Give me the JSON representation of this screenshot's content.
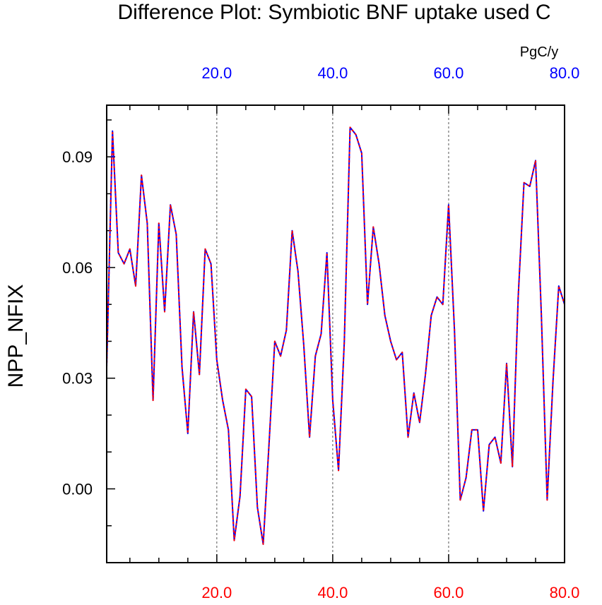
{
  "chart_data": {
    "type": "line",
    "title": "Difference Plot: Symbiotic BNF uptake used C",
    "units": "PgC/y",
    "ylabel": "NPP_NFIX",
    "xlabel": "",
    "xlim": [
      1,
      80
    ],
    "ylim": [
      -0.02,
      0.104
    ],
    "yticks": [
      0.0,
      0.03,
      0.06,
      0.09
    ],
    "ytick_labels": [
      "0.00",
      "0.03",
      "0.06",
      "0.09"
    ],
    "xticks": [
      20,
      40,
      60,
      80
    ],
    "xtick_labels_top": [
      "20.0",
      "40.0",
      "60.0",
      "80.0"
    ],
    "xtick_labels_bottom": [
      "20.0",
      "40.0",
      "60.0",
      "80.0"
    ],
    "top_axis_color": "#0000ff",
    "bottom_axis_color": "#ff0000",
    "vertical_gridlines": [
      20,
      40,
      60
    ],
    "series": [
      {
        "line_color": "#0000ff",
        "overlay_color": "#ff0000",
        "x": [
          1,
          2,
          3,
          4,
          5,
          6,
          7,
          8,
          9,
          10,
          11,
          12,
          13,
          14,
          15,
          16,
          17,
          18,
          19,
          20,
          21,
          22,
          23,
          24,
          25,
          26,
          27,
          28,
          29,
          30,
          31,
          32,
          33,
          34,
          35,
          36,
          37,
          38,
          39,
          40,
          41,
          42,
          43,
          44,
          45,
          46,
          47,
          48,
          49,
          50,
          51,
          52,
          53,
          54,
          55,
          56,
          57,
          58,
          59,
          60,
          61,
          62,
          63,
          64,
          65,
          66,
          67,
          68,
          69,
          70,
          71,
          72,
          73,
          74,
          75,
          76,
          77,
          78,
          79,
          80
        ],
        "values": [
          0.033,
          0.097,
          0.064,
          0.061,
          0.065,
          0.055,
          0.085,
          0.072,
          0.024,
          0.072,
          0.048,
          0.077,
          0.069,
          0.033,
          0.015,
          0.048,
          0.031,
          0.065,
          0.061,
          0.035,
          0.024,
          0.016,
          -0.014,
          -0.002,
          0.027,
          0.025,
          -0.005,
          -0.015,
          0.012,
          0.04,
          0.036,
          0.043,
          0.07,
          0.059,
          0.039,
          0.014,
          0.036,
          0.042,
          0.064,
          0.024,
          0.005,
          0.04,
          0.098,
          0.096,
          0.091,
          0.05,
          0.071,
          0.061,
          0.047,
          0.04,
          0.035,
          0.037,
          0.014,
          0.026,
          0.018,
          0.031,
          0.047,
          0.052,
          0.05,
          0.077,
          0.043,
          -0.003,
          0.003,
          0.016,
          0.016,
          -0.006,
          0.012,
          0.014,
          0.007,
          0.034,
          0.006,
          0.052,
          0.083,
          0.082,
          0.089,
          0.047,
          -0.003,
          0.029,
          0.055,
          0.05
        ]
      }
    ]
  }
}
